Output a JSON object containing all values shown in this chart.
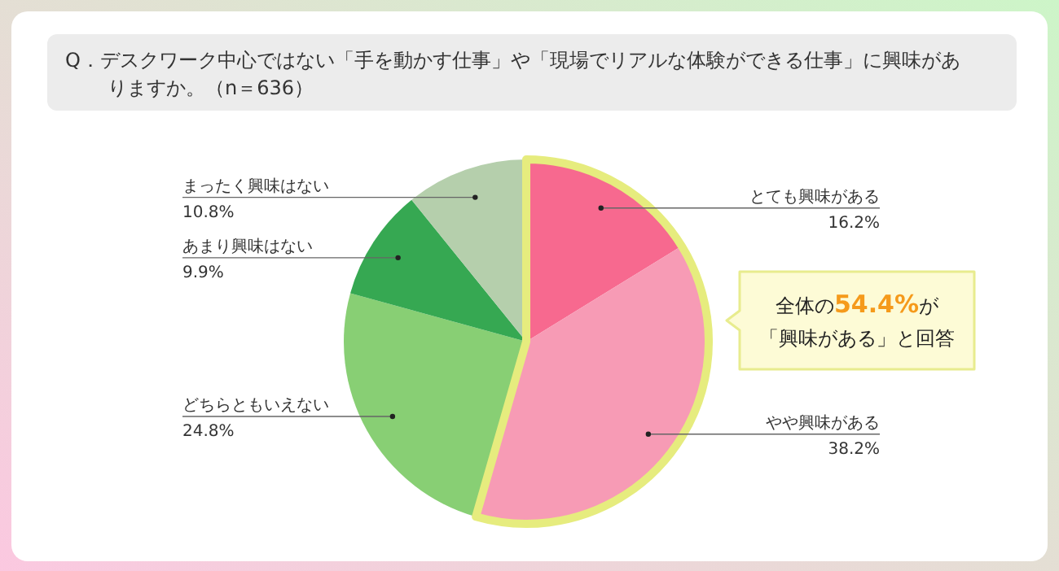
{
  "chart_data": {
    "type": "pie",
    "title": "Q．デスクワーク中心ではない「手を動かす仕事」や「現場でリアルな体験ができる仕事」に興味がありますか。（n＝636）",
    "categories": [
      "とても興味がある",
      "やや興味がある",
      "どちらともいえない",
      "あまり興味はない",
      "まったく興味はない"
    ],
    "values": [
      16.2,
      38.2,
      24.8,
      9.9,
      10.8
    ],
    "value_labels": [
      "16.2%",
      "38.2%",
      "24.8%",
      "9.9%",
      "10.8%"
    ],
    "colors": [
      "#f7698f",
      "#f79bb5",
      "#88cf74",
      "#36a852",
      "#b5cfac"
    ],
    "annotations": [
      "全体の54.4%が",
      "「興味がある」と回答"
    ]
  }
}
